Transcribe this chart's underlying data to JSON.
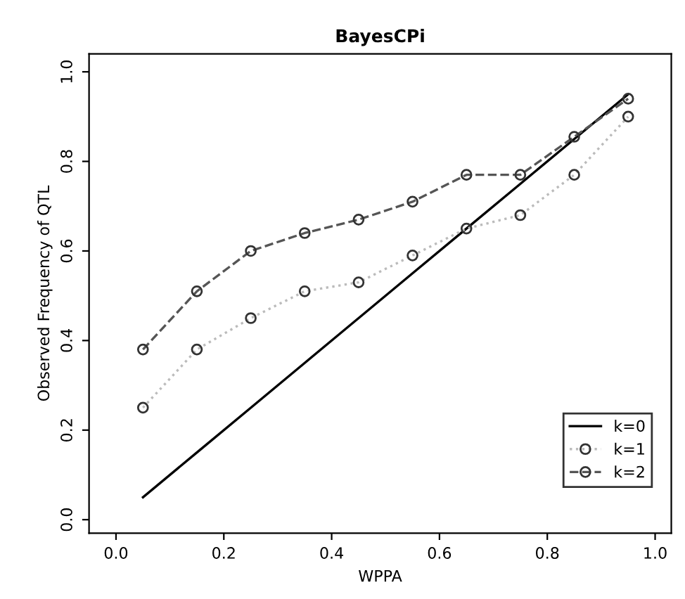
{
  "chart_data": {
    "type": "line",
    "title": "BayesCPi",
    "xlabel": "WPPA",
    "ylabel": "Observed Frequency of QTL",
    "x": [
      0.05,
      0.15,
      0.25,
      0.35,
      0.45,
      0.55,
      0.65,
      0.75,
      0.85,
      0.95
    ],
    "xlim": [
      -0.05,
      1.03
    ],
    "ylim": [
      -0.03,
      1.04
    ],
    "xticks": [
      {
        "value": 0,
        "label": "0.0"
      },
      0.2,
      0.4,
      0.6,
      0.8,
      {
        "value": 1,
        "label": "1.0"
      }
    ],
    "yticks": [
      {
        "value": 0,
        "label": "0.0"
      },
      0.2,
      0.4,
      0.6,
      0.8,
      {
        "value": 1,
        "label": "1.0"
      }
    ],
    "grid": false,
    "legend": "bottom right",
    "series": [
      {
        "name": "k=0",
        "color": "#000000",
        "line_style": "solid",
        "marker": "none",
        "values": [
          0.05,
          0.15,
          0.25,
          0.35,
          0.45,
          0.55,
          0.65,
          0.75,
          0.85,
          0.95
        ]
      },
      {
        "name": "k=1",
        "color": "#bbbbbb",
        "line_style": "dotted",
        "marker": "circle",
        "values": [
          0.25,
          0.38,
          0.45,
          0.51,
          0.53,
          0.59,
          0.65,
          0.68,
          0.77,
          0.9
        ]
      },
      {
        "name": "k=2",
        "color": "#555555",
        "line_style": "dashed",
        "marker": "circle",
        "values": [
          0.38,
          0.51,
          0.6,
          0.64,
          0.67,
          0.71,
          0.77,
          0.77,
          0.855,
          0.94
        ]
      }
    ]
  }
}
